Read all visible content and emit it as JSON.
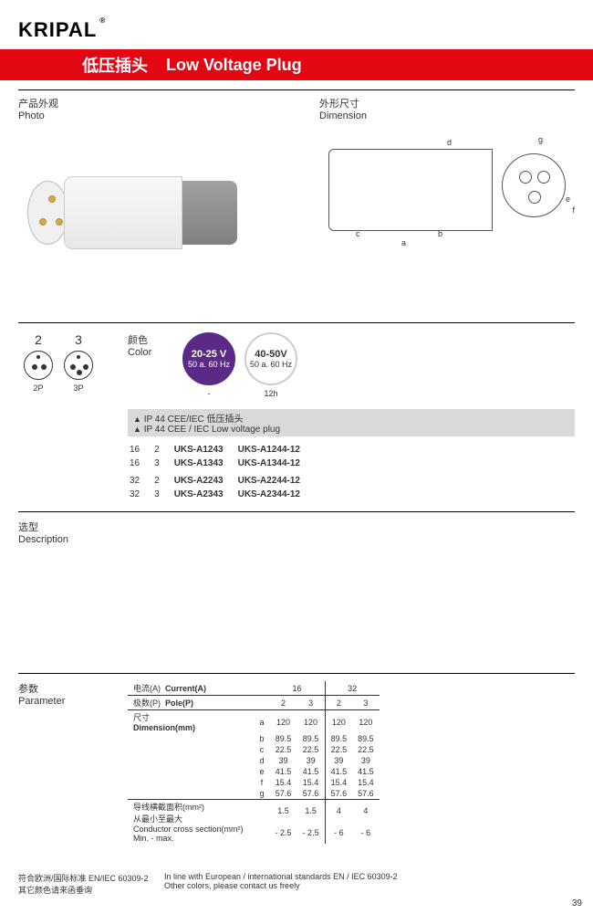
{
  "brand": "KRIPAL",
  "header": {
    "zh": "低压插头",
    "en": "Low Voltage Plug"
  },
  "photo_label": {
    "zh": "产品外观",
    "en": "Photo"
  },
  "dimension_label": {
    "zh": "外形尺寸",
    "en": "Dimension"
  },
  "dim_letters": {
    "a": "a",
    "b": "b",
    "c": "c",
    "d": "d",
    "e": "e",
    "f": "f",
    "g": "g"
  },
  "poles": [
    {
      "num": "2",
      "lab": "2P",
      "pins": 2
    },
    {
      "num": "3",
      "lab": "3P",
      "pins": 3
    }
  ],
  "color_label": {
    "zh": "颜色",
    "en": "Color"
  },
  "voltages": [
    {
      "v": "20-25 V",
      "hz": "50 a. 60 Hz",
      "purple": true,
      "sub": "-"
    },
    {
      "v": "40-50V",
      "hz": "50 a. 60 Hz",
      "purple": false,
      "sub": "12h"
    }
  ],
  "ip_header": {
    "zh": "IP 44 CEE/IEC 低压插头",
    "en": "IP 44 CEE / IEC Low voltage plug"
  },
  "desc_rows": [
    {
      "amp": "16",
      "pole": "2",
      "m1": "UKS-A1243",
      "m2": "UKS-A1244-12"
    },
    {
      "amp": "16",
      "pole": "3",
      "m1": "UKS-A1343",
      "m2": "UKS-A1344-12"
    },
    {
      "amp": "",
      "pole": "",
      "m1": "",
      "m2": ""
    },
    {
      "amp": "32",
      "pole": "2",
      "m1": "UKS-A2243",
      "m2": "UKS-A2244-12"
    },
    {
      "amp": "32",
      "pole": "3",
      "m1": "UKS-A2343",
      "m2": "UKS-A2344-12"
    }
  ],
  "description_label": {
    "zh": "选型",
    "en": "Description"
  },
  "parameter_label": {
    "zh": "参数",
    "en": "Parameter"
  },
  "param_headers": {
    "current": {
      "zh": "电流(A)",
      "en": "Current(A)"
    },
    "pole": {
      "zh": "极数(P)",
      "en": "Pole(P)"
    },
    "dimension": {
      "zh": "尺寸",
      "en": "Dimension(mm)"
    },
    "conductor": {
      "zh": "导线横截面积(mm²)",
      "zh2": "从最小至最大",
      "en": "Conductor cross section(mm²)",
      "en2": "Min. - max."
    }
  },
  "param_currents": [
    "16",
    "32"
  ],
  "param_poles": [
    "2",
    "3",
    "2",
    "3"
  ],
  "param_dims": [
    {
      "k": "a",
      "v": [
        "120",
        "120",
        "120",
        "120"
      ]
    },
    {
      "k": "b",
      "v": [
        "89.5",
        "89.5",
        "89.5",
        "89.5"
      ]
    },
    {
      "k": "c",
      "v": [
        "22.5",
        "22.5",
        "22.5",
        "22.5"
      ]
    },
    {
      "k": "d",
      "v": [
        "39",
        "39",
        "39",
        "39"
      ]
    },
    {
      "k": "e",
      "v": [
        "41.5",
        "41.5",
        "41.5",
        "41.5"
      ]
    },
    {
      "k": "f",
      "v": [
        "15.4",
        "15.4",
        "15.4",
        "15.4"
      ]
    },
    {
      "k": "g",
      "v": [
        "57.6",
        "57.6",
        "57.6",
        "57.6"
      ]
    }
  ],
  "param_conductor": [
    [
      "1.5",
      "1.5",
      "4",
      "4"
    ],
    [
      "- 2.5",
      "- 2.5",
      "- 6",
      "- 6"
    ]
  ],
  "footer": {
    "zh1": "符合欧洲/国际标准 EN/IEC 60309-2",
    "zh2": "其它颜色请来函垂询",
    "en1": "In line with European / international standards EN / IEC 60309-2",
    "en2": "Other colors, please contact us freely"
  },
  "page_number": "39"
}
